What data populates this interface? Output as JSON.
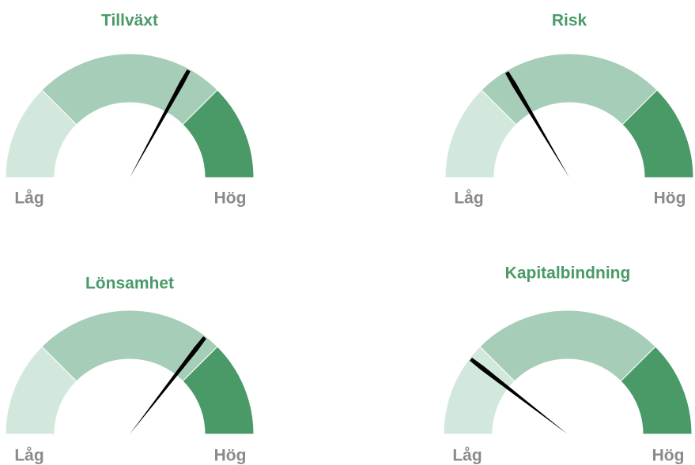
{
  "chart_data": [
    {
      "type": "gauge",
      "title": "Tillväxt",
      "value": 66,
      "xlim": [
        0,
        100
      ],
      "min_label": "Låg",
      "max_label": "Hög",
      "bands": [
        {
          "from": 0,
          "to": 25,
          "color": "#d3e8dc"
        },
        {
          "from": 25,
          "to": 75,
          "color": "#a5cdb8"
        },
        {
          "from": 75,
          "to": 100,
          "color": "#4a9a68"
        }
      ],
      "needle_color": "#000000"
    },
    {
      "type": "gauge",
      "title": "Risk",
      "value": 33,
      "xlim": [
        0,
        100
      ],
      "min_label": "Låg",
      "max_label": "Hög",
      "bands": [
        {
          "from": 0,
          "to": 25,
          "color": "#d3e8dc"
        },
        {
          "from": 25,
          "to": 75,
          "color": "#a5cdb8"
        },
        {
          "from": 75,
          "to": 100,
          "color": "#4a9a68"
        }
      ],
      "needle_color": "#000000"
    },
    {
      "type": "gauge",
      "title": "Lönsamhet",
      "value": 71,
      "xlim": [
        0,
        100
      ],
      "min_label": "Låg",
      "max_label": "Hög",
      "bands": [
        {
          "from": 0,
          "to": 25,
          "color": "#d3e8dc"
        },
        {
          "from": 25,
          "to": 75,
          "color": "#a5cdb8"
        },
        {
          "from": 75,
          "to": 100,
          "color": "#4a9a68"
        }
      ],
      "needle_color": "#000000"
    },
    {
      "type": "gauge",
      "title": "Kapitalbindning",
      "value": 21,
      "xlim": [
        0,
        100
      ],
      "min_label": "Låg",
      "max_label": "Hög",
      "bands": [
        {
          "from": 0,
          "to": 25,
          "color": "#d3e8dc"
        },
        {
          "from": 25,
          "to": 75,
          "color": "#a5cdb8"
        },
        {
          "from": 75,
          "to": 100,
          "color": "#4a9a68"
        }
      ],
      "needle_color": "#000000"
    }
  ]
}
